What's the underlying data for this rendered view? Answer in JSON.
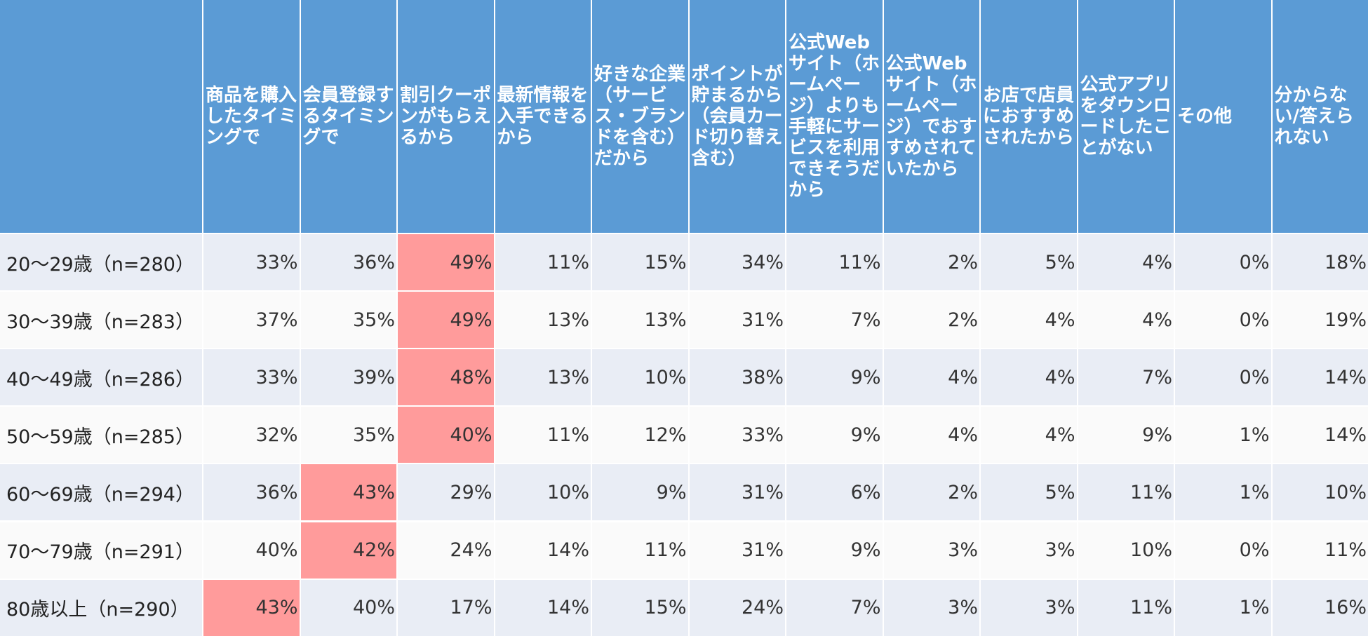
{
  "chart_data": {
    "type": "table",
    "title": "",
    "columns": [
      "商品を購入したタイミングで",
      "会員登録するタイミングで",
      "割引クーポンがもらえるから",
      "最新情報を入手できるから",
      "好きな企業（サービス・ブランドを含む）だから",
      "ポイントが貯まるから（会員カード切り替え含む）",
      "公式Webサイト（ホームページ）よりも手軽にサービスを利用できそうだから",
      "公式Webサイト（ホームページ）でおすすめされていたから",
      "お店で店員におすすめされたから",
      "公式アプリをダウンロードしたことがない",
      "その他",
      "分からない/答えられない"
    ],
    "rows": [
      {
        "label": "20～29歳（n=280）",
        "values": [
          "33%",
          "36%",
          "49%",
          "11%",
          "15%",
          "34%",
          "11%",
          "2%",
          "5%",
          "4%",
          "0%",
          "18%"
        ],
        "highlight": [
          2
        ]
      },
      {
        "label": "30～39歳（n=283）",
        "values": [
          "37%",
          "35%",
          "49%",
          "13%",
          "13%",
          "31%",
          "7%",
          "2%",
          "4%",
          "4%",
          "0%",
          "19%"
        ],
        "highlight": [
          2
        ]
      },
      {
        "label": "40～49歳（n=286）",
        "values": [
          "33%",
          "39%",
          "48%",
          "13%",
          "10%",
          "38%",
          "9%",
          "4%",
          "4%",
          "7%",
          "0%",
          "14%"
        ],
        "highlight": [
          2
        ]
      },
      {
        "label": "50～59歳（n=285）",
        "values": [
          "32%",
          "35%",
          "40%",
          "11%",
          "12%",
          "33%",
          "9%",
          "4%",
          "4%",
          "9%",
          "1%",
          "14%"
        ],
        "highlight": [
          2
        ]
      },
      {
        "label": "60～69歳（n=294）",
        "values": [
          "36%",
          "43%",
          "29%",
          "10%",
          "9%",
          "31%",
          "6%",
          "2%",
          "5%",
          "11%",
          "1%",
          "10%"
        ],
        "highlight": [
          1
        ]
      },
      {
        "label": "70～79歳（n=291）",
        "values": [
          "40%",
          "42%",
          "24%",
          "14%",
          "11%",
          "31%",
          "9%",
          "3%",
          "3%",
          "10%",
          "0%",
          "11%"
        ],
        "highlight": [
          1
        ]
      },
      {
        "label": "80歳以上（n=290）",
        "values": [
          "43%",
          "40%",
          "17%",
          "14%",
          "15%",
          "24%",
          "7%",
          "3%",
          "3%",
          "11%",
          "1%",
          "16%"
        ],
        "highlight": [
          0
        ]
      }
    ]
  },
  "colors": {
    "header_bg": "#5b9bd5",
    "header_text": "#ffffff",
    "row_odd_bg": "#e9edf5",
    "row_even_bg": "#fafafa",
    "highlight_bg": "#ff9b9b",
    "grid_line": "#ffffff"
  }
}
